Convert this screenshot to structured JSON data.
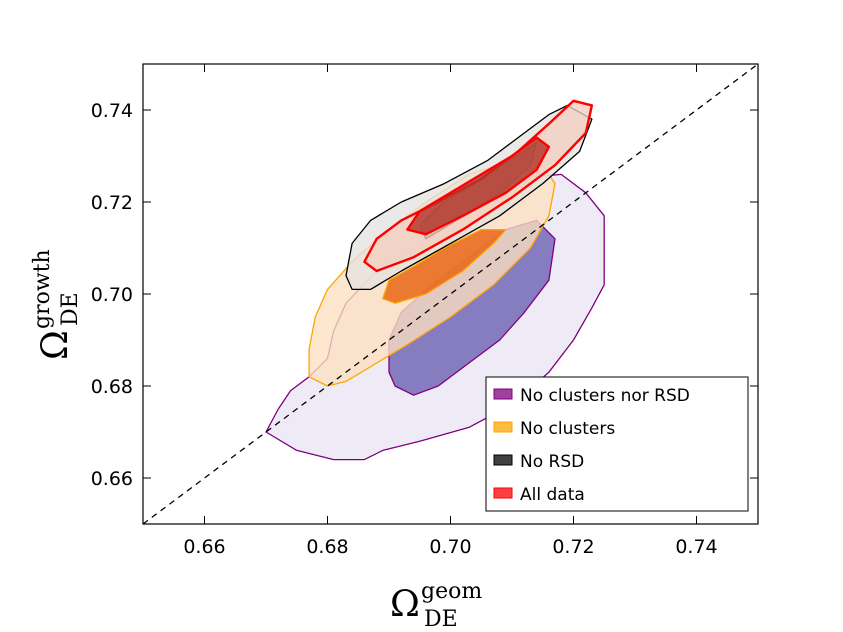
{
  "chart_data": {
    "type": "contour",
    "xlim": [
      0.65,
      0.75
    ],
    "ylim": [
      0.65,
      0.75
    ],
    "x_ticks": [
      0.66,
      0.68,
      0.7,
      0.72,
      0.74
    ],
    "y_ticks": [
      0.66,
      0.68,
      0.7,
      0.72,
      0.74
    ],
    "tick_labels_x": [
      "0.66",
      "0.68",
      "0.70",
      "0.72",
      "0.74"
    ],
    "tick_labels_y": [
      "0.66",
      "0.68",
      "0.70",
      "0.72",
      "0.74"
    ],
    "xlabel_main": "Ω",
    "xlabel_sup": "geom",
    "xlabel_sub": "DE",
    "ylabel_main": "Ω",
    "ylabel_sup": "growth",
    "ylabel_sub": "DE",
    "grid": false,
    "legend_position": "bottom-right",
    "reference_line": {
      "style": "dashed",
      "color": "#000000",
      "points": [
        [
          0.65,
          0.65
        ],
        [
          0.75,
          0.75
        ]
      ]
    },
    "series": [
      {
        "name": "No clusters nor RSD",
        "color": "#800080",
        "fill_outer": "#e9e6f3",
        "fill_inner": "#6f64b4",
        "outer": [
          [
            0.67,
            0.67
          ],
          [
            0.675,
            0.666
          ],
          [
            0.681,
            0.664
          ],
          [
            0.686,
            0.664
          ],
          [
            0.689,
            0.666
          ],
          [
            0.695,
            0.668
          ],
          [
            0.703,
            0.671
          ],
          [
            0.71,
            0.676
          ],
          [
            0.716,
            0.683
          ],
          [
            0.72,
            0.69
          ],
          [
            0.723,
            0.697
          ],
          [
            0.725,
            0.702
          ],
          [
            0.725,
            0.717
          ],
          [
            0.722,
            0.722
          ],
          [
            0.718,
            0.726
          ],
          [
            0.71,
            0.725
          ],
          [
            0.703,
            0.721
          ],
          [
            0.695,
            0.711
          ],
          [
            0.688,
            0.705
          ],
          [
            0.683,
            0.698
          ],
          [
            0.681,
            0.692
          ],
          [
            0.68,
            0.686
          ],
          [
            0.677,
            0.682
          ],
          [
            0.674,
            0.679
          ],
          [
            0.672,
            0.675
          ]
        ],
        "inner": [
          [
            0.69,
            0.683
          ],
          [
            0.691,
            0.68
          ],
          [
            0.694,
            0.678
          ],
          [
            0.698,
            0.68
          ],
          [
            0.703,
            0.685
          ],
          [
            0.708,
            0.69
          ],
          [
            0.712,
            0.696
          ],
          [
            0.716,
            0.703
          ],
          [
            0.717,
            0.712
          ],
          [
            0.714,
            0.716
          ],
          [
            0.709,
            0.714
          ],
          [
            0.703,
            0.708
          ],
          [
            0.697,
            0.702
          ],
          [
            0.692,
            0.696
          ],
          [
            0.69,
            0.69
          ]
        ]
      },
      {
        "name": "No clusters",
        "color": "#ffa500",
        "fill_outer": "#fce0c2",
        "fill_inner": "#e9620f",
        "outer": [
          [
            0.677,
            0.682
          ],
          [
            0.68,
            0.68
          ],
          [
            0.683,
            0.681
          ],
          [
            0.688,
            0.685
          ],
          [
            0.693,
            0.689
          ],
          [
            0.7,
            0.695
          ],
          [
            0.707,
            0.702
          ],
          [
            0.713,
            0.71
          ],
          [
            0.716,
            0.717
          ],
          [
            0.717,
            0.724
          ],
          [
            0.715,
            0.728
          ],
          [
            0.71,
            0.729
          ],
          [
            0.703,
            0.726
          ],
          [
            0.696,
            0.72
          ],
          [
            0.689,
            0.713
          ],
          [
            0.684,
            0.707
          ],
          [
            0.68,
            0.701
          ],
          [
            0.678,
            0.695
          ],
          [
            0.677,
            0.688
          ]
        ],
        "inner": [
          [
            0.689,
            0.699
          ],
          [
            0.691,
            0.698
          ],
          [
            0.696,
            0.7
          ],
          [
            0.702,
            0.705
          ],
          [
            0.707,
            0.711
          ],
          [
            0.709,
            0.714
          ],
          [
            0.705,
            0.714
          ],
          [
            0.699,
            0.71
          ],
          [
            0.694,
            0.706
          ],
          [
            0.69,
            0.703
          ]
        ]
      },
      {
        "name": "No RSD",
        "color": "#000000",
        "fill_outer": "#e6e3e0",
        "fill_inner": "#7b6662",
        "outer": [
          [
            0.683,
            0.704
          ],
          [
            0.684,
            0.711
          ],
          [
            0.687,
            0.716
          ],
          [
            0.692,
            0.72
          ],
          [
            0.699,
            0.724
          ],
          [
            0.706,
            0.729
          ],
          [
            0.712,
            0.735
          ],
          [
            0.716,
            0.739
          ],
          [
            0.719,
            0.741
          ],
          [
            0.723,
            0.738
          ],
          [
            0.721,
            0.731
          ],
          [
            0.715,
            0.724
          ],
          [
            0.708,
            0.717
          ],
          [
            0.7,
            0.711
          ],
          [
            0.692,
            0.705
          ],
          [
            0.687,
            0.701
          ],
          [
            0.684,
            0.701
          ]
        ],
        "inner": [
          [
            0.695,
            0.715
          ],
          [
            0.699,
            0.72
          ],
          [
            0.704,
            0.724
          ],
          [
            0.708,
            0.728
          ],
          [
            0.712,
            0.731
          ],
          [
            0.714,
            0.733
          ],
          [
            0.713,
            0.728
          ],
          [
            0.708,
            0.722
          ],
          [
            0.701,
            0.716
          ],
          [
            0.696,
            0.712
          ]
        ]
      },
      {
        "name": "All data",
        "color": "#ff0000",
        "fill_outer": "#f4cfc0",
        "fill_inner": "#b03428",
        "outer": [
          [
            0.686,
            0.707
          ],
          [
            0.688,
            0.712
          ],
          [
            0.692,
            0.716
          ],
          [
            0.698,
            0.72
          ],
          [
            0.705,
            0.725
          ],
          [
            0.711,
            0.731
          ],
          [
            0.716,
            0.737
          ],
          [
            0.72,
            0.742
          ],
          [
            0.723,
            0.741
          ],
          [
            0.722,
            0.735
          ],
          [
            0.717,
            0.728
          ],
          [
            0.71,
            0.721
          ],
          [
            0.702,
            0.714
          ],
          [
            0.694,
            0.708
          ],
          [
            0.688,
            0.705
          ]
        ],
        "inner": [
          [
            0.693,
            0.714
          ],
          [
            0.695,
            0.718
          ],
          [
            0.7,
            0.722
          ],
          [
            0.705,
            0.726
          ],
          [
            0.71,
            0.73
          ],
          [
            0.714,
            0.734
          ],
          [
            0.716,
            0.732
          ],
          [
            0.714,
            0.727
          ],
          [
            0.709,
            0.722
          ],
          [
            0.702,
            0.717
          ],
          [
            0.696,
            0.713
          ]
        ]
      }
    ]
  }
}
